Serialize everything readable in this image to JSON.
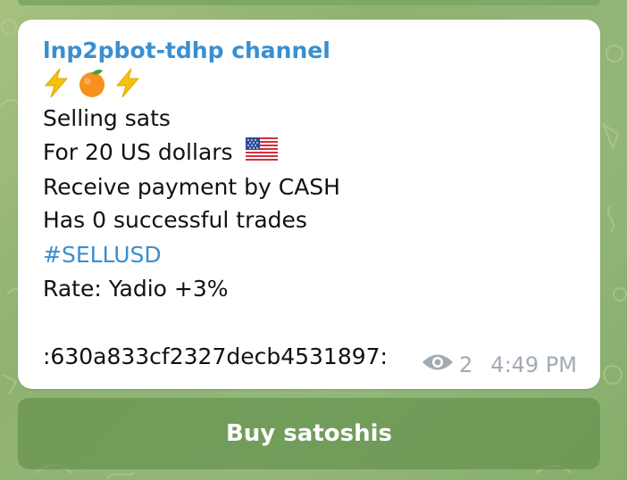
{
  "message": {
    "channel_name": "lnp2pbot-tdhp channel",
    "emoji_icons": [
      "lightning-icon",
      "orange-icon",
      "lightning-icon"
    ],
    "lines": [
      "Selling sats",
      "For 20 US dollars",
      "Receive payment by CASH",
      "Has 0 successful trades",
      "#SELLUSD",
      "Rate: Yadio +3%",
      "",
      ":630a833cf2327decb4531897:"
    ],
    "flag_icon": "us-flag-icon",
    "views": "2",
    "time": "4:49 PM"
  },
  "inline_button": {
    "label": "Buy satoshis"
  },
  "colors": {
    "link": "#3a8fd0",
    "meta": "#a2abb4",
    "button_bg": "#608c48"
  }
}
